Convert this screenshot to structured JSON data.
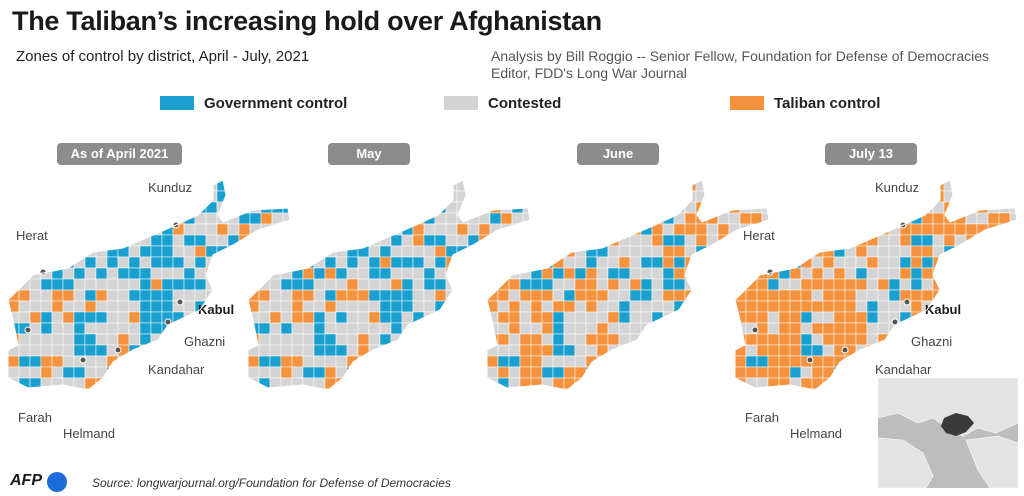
{
  "header": {
    "title": "The Taliban’s increasing hold over Afghanistan",
    "subtitle": "Zones of control by district, April - July, 2021",
    "credit_line1": "Analysis by Bill Roggio -- Senior Fellow, Foundation for Defense of Democracies",
    "credit_line2": "Editor, FDD's Long War Journal"
  },
  "legend": [
    {
      "label": "Government control",
      "color": "#1aa0cf"
    },
    {
      "label": "Contested",
      "color": "#d4d4d4"
    },
    {
      "label": "Taliban control",
      "color": "#f5923e"
    }
  ],
  "maps": [
    {
      "period": "As of April 2021",
      "government_share": 0.35,
      "taliban_share": 0.12,
      "cities": [
        "Kunduz",
        "Herat",
        "Kabul",
        "Ghazni",
        "Kandahar",
        "Farah",
        "Helmand"
      ]
    },
    {
      "period": "May",
      "government_share": 0.28,
      "taliban_share": 0.2
    },
    {
      "period": "June",
      "government_share": 0.18,
      "taliban_share": 0.35
    },
    {
      "period": "July 13",
      "government_share": 0.1,
      "taliban_share": 0.55,
      "cities": [
        "Kunduz",
        "Herat",
        "Kabul",
        "Ghazni",
        "Kandahar",
        "Farah",
        "Helmand"
      ]
    }
  ],
  "locator_map": {
    "land_color": "#e3e3e3",
    "sea_color": "#bdbdbd",
    "highlight_color": "#3a3a3a"
  },
  "footer": {
    "logo": "AFP",
    "source": "Source: longwarjournal.org/Foundation for Defense of Democracies"
  }
}
